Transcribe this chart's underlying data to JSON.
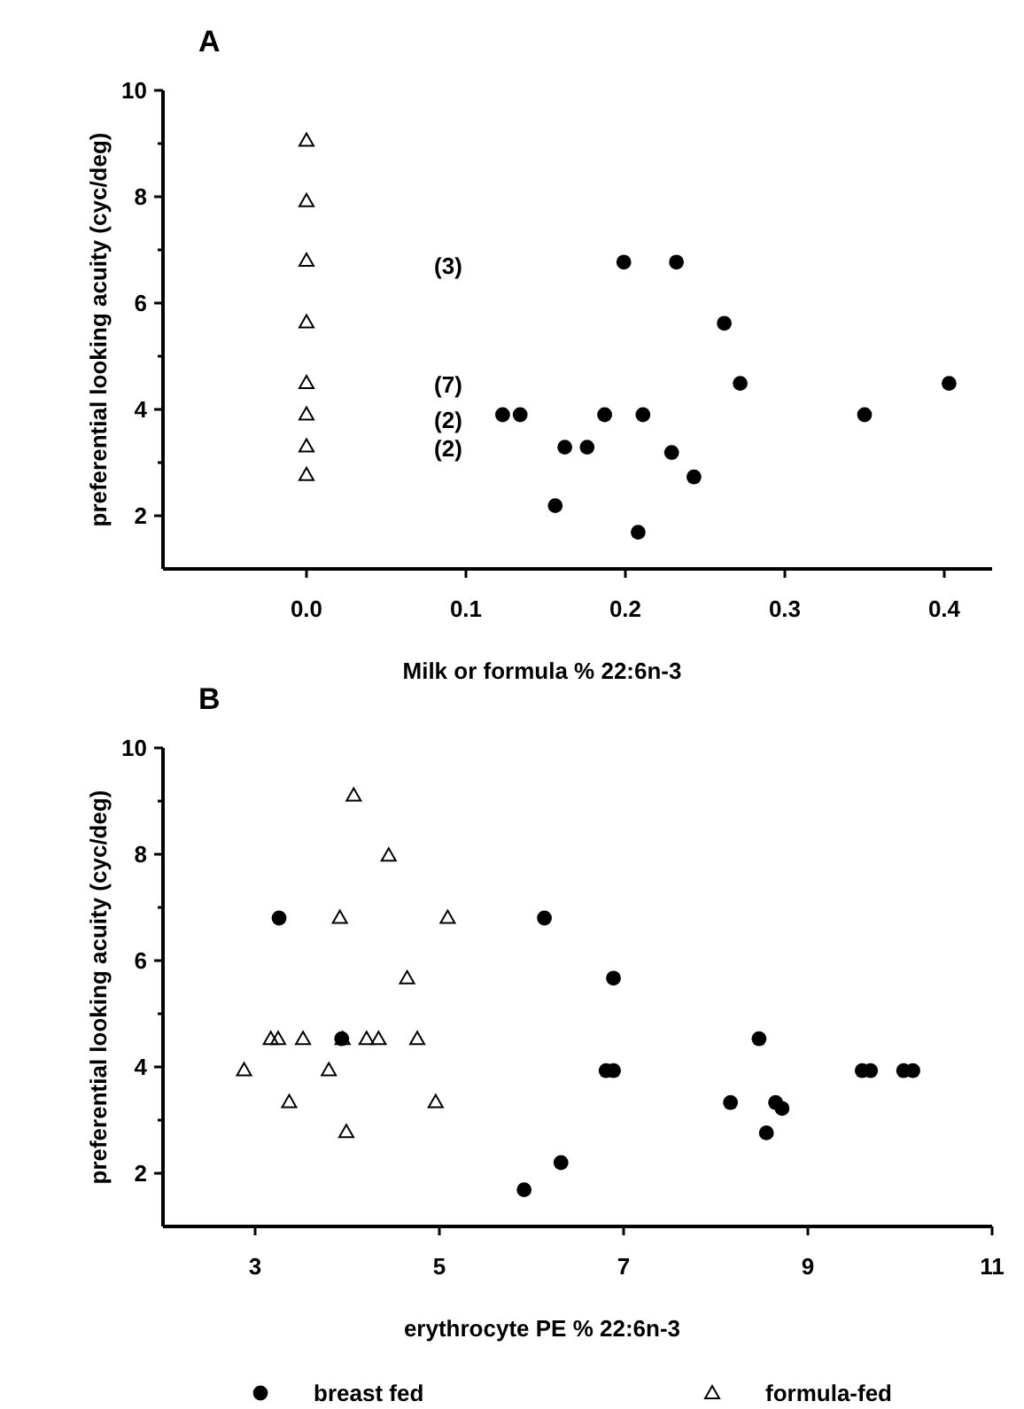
{
  "chart_data": [
    {
      "type": "scatter",
      "title": "A",
      "xlabel": "Milk or formula % 22:6n-3",
      "ylabel": "preferential looking acuity (cyc/deg)",
      "xlim": [
        -0.09,
        0.43
      ],
      "ylim": [
        1,
        10
      ],
      "xticks": [
        {
          "value": 0,
          "label": "0.0"
        },
        0.1,
        0.2,
        0.3,
        0.4
      ],
      "yticks": [
        2,
        {
          "value": 3,
          "label": null
        },
        4,
        {
          "value": 5,
          "label": null
        },
        6,
        {
          "value": 7,
          "label": null
        },
        8,
        {
          "value": 9,
          "label": null
        },
        10
      ],
      "grid": false,
      "legend": false,
      "annotations": [
        "(3)",
        "(7)",
        "(2)",
        "(2)"
      ],
      "series": [
        {
          "color": "#000000",
          "marker": "circle",
          "x": [
            0.123,
            0.134,
            0.199,
            0.232,
            0.262,
            0.272,
            0.403,
            0.187,
            0.211,
            0.35,
            0.162,
            0.176,
            0.229,
            0.243,
            0.156,
            0.208
          ],
          "values": [
            3.9,
            3.9,
            6.77,
            6.77,
            5.62,
            4.49,
            4.49,
            3.9,
            3.9,
            3.9,
            3.29,
            3.29,
            3.19,
            2.73,
            2.19,
            1.69
          ]
        },
        {
          "color": "#000000",
          "marker": "triangle",
          "x": [
            0,
            0,
            0,
            0,
            0,
            0,
            0,
            0
          ],
          "values": [
            9.06,
            7.92,
            6.8,
            5.64,
            4.5,
            3.91,
            3.31,
            2.77
          ]
        }
      ]
    },
    {
      "type": "scatter",
      "title": "B",
      "xlabel": "erythrocyte PE % 22:6n-3",
      "ylabel": "preferential looking acuity (cyc/deg)",
      "xlim": [
        2,
        11
      ],
      "ylim": [
        1,
        10
      ],
      "xticks": [
        3,
        5,
        7,
        9,
        11
      ],
      "yticks": [
        2,
        {
          "value": 3,
          "label": null
        },
        4,
        {
          "value": 5,
          "label": null
        },
        6,
        {
          "value": 7,
          "label": null
        },
        8,
        {
          "value": 9,
          "label": null
        },
        10
      ],
      "grid": false,
      "legend": "bottom",
      "series": [
        {
          "name": "breast fed",
          "color": "#000000",
          "marker": "circle",
          "x": [
            3.26,
            3.94,
            5.92,
            6.14,
            6.32,
            6.81,
            6.89,
            6.89,
            8.16,
            8.47,
            8.55,
            8.65,
            8.72,
            9.59,
            9.68,
            10.04,
            10.14
          ],
          "values": [
            6.8,
            4.53,
            1.69,
            6.8,
            2.2,
            3.93,
            3.93,
            5.67,
            3.33,
            4.53,
            2.76,
            3.33,
            3.22,
            3.93,
            3.93,
            3.93,
            3.93
          ]
        },
        {
          "name": "formula-fed",
          "color": "#000000",
          "marker": "triangle",
          "x": [
            2.88,
            3.17,
            3.25,
            3.37,
            3.52,
            3.8,
            3.92,
            3.95,
            3.99,
            4.07,
            4.21,
            4.34,
            4.45,
            4.65,
            4.76,
            4.96,
            5.09
          ],
          "values": [
            3.94,
            4.53,
            4.53,
            3.34,
            4.53,
            3.94,
            6.81,
            4.53,
            2.78,
            9.11,
            4.53,
            4.53,
            7.98,
            5.67,
            4.53,
            3.34,
            6.81
          ]
        }
      ]
    }
  ]
}
